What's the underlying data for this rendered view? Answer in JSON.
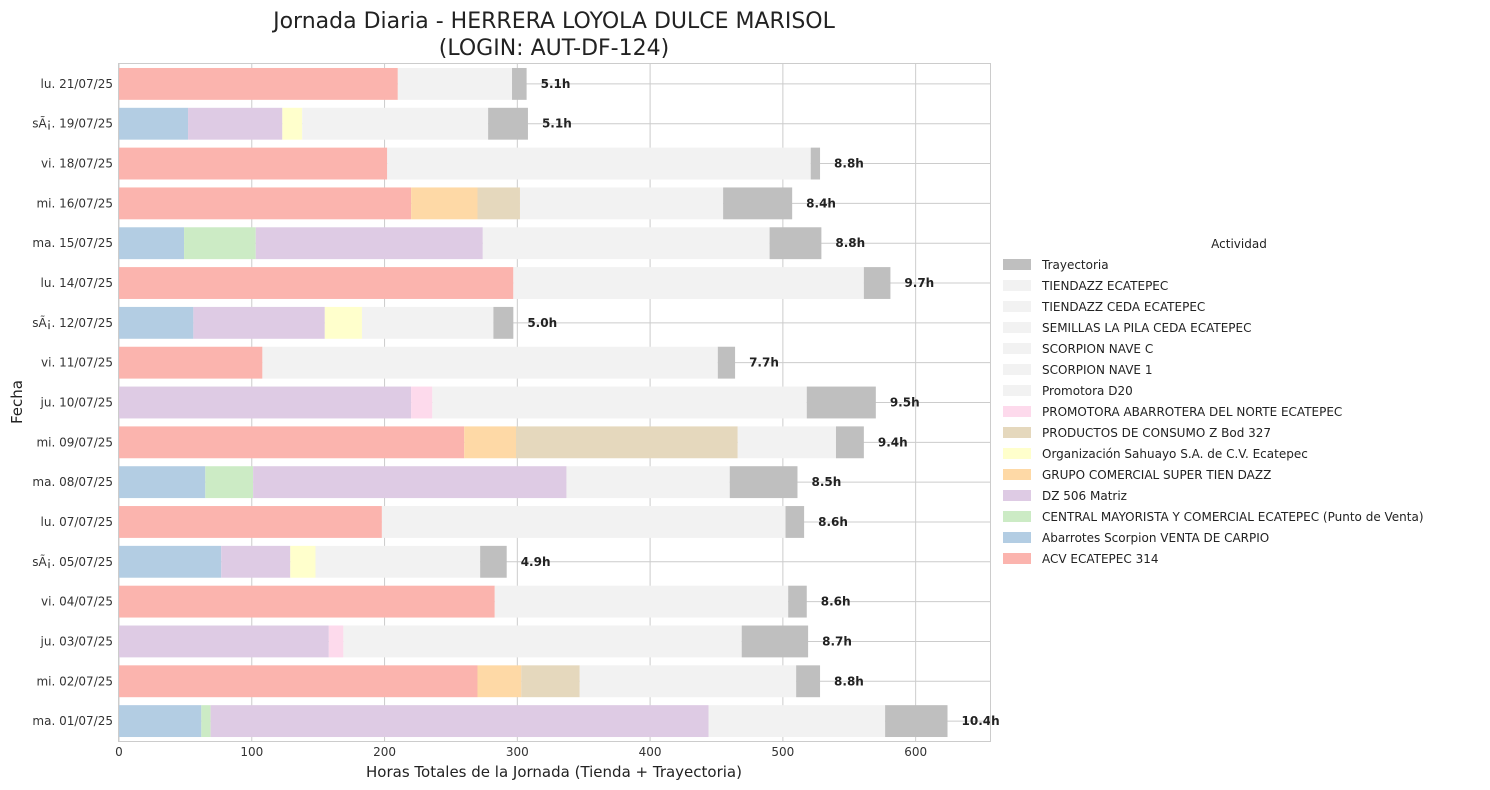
{
  "chart_data": {
    "type": "bar",
    "orientation": "horizontal",
    "stacked": true,
    "title": [
      "Jornada Diaria - HERRERA LOYOLA DULCE MARISOL",
      "(LOGIN: AUT-DF-124)"
    ],
    "xlabel": "Horas Totales de la Jornada (Tienda + Trayectoria)",
    "ylabel": "Fecha",
    "xlim": [
      0,
      656
    ],
    "xticks": [
      0,
      100,
      200,
      300,
      400,
      500,
      600
    ],
    "grid": true,
    "legend_title": "Actividad",
    "legend_position": "center-right",
    "activities": [
      {
        "name": "Trayectoria",
        "color": "#bfbfbf"
      },
      {
        "name": "TIENDAZZ ECATEPEC",
        "color": "#f2f2f2"
      },
      {
        "name": "TIENDAZZ CEDA ECATEPEC",
        "color": "#f2f2f2"
      },
      {
        "name": "SEMILLAS LA PILA CEDA ECATEPEC",
        "color": "#f2f2f2"
      },
      {
        "name": "SCORPION NAVE C",
        "color": "#f2f2f2"
      },
      {
        "name": "SCORPION NAVE 1",
        "color": "#f2f2f2"
      },
      {
        "name": "Promotora D20",
        "color": "#f2f2f2"
      },
      {
        "name": "PROMOTORA ABARROTERA DEL NORTE ECATEPEC",
        "color": "#fddaec"
      },
      {
        "name": "PRODUCTOS DE CONSUMO Z Bod 327",
        "color": "#e5d8bd"
      },
      {
        "name": "Organización Sahuayo S.A. de C.V. Ecatepec",
        "color": "#ffffcc"
      },
      {
        "name": "GRUPO COMERCIAL SUPER TIEN DAZZ",
        "color": "#fed9a6"
      },
      {
        "name": "DZ 506 Matriz",
        "color": "#decbe4"
      },
      {
        "name": "CENTRAL MAYORISTA Y COMERCIAL ECATEPEC (Punto de Venta)",
        "color": "#ccebc5"
      },
      {
        "name": "Abarrotes Scorpion VENTA DE CARPIO",
        "color": "#b3cde3"
      },
      {
        "name": "ACV ECATEPEC 314",
        "color": "#fbb4ae"
      }
    ],
    "rows": [
      {
        "date": "lu. 21/07/25",
        "total_label": "5.1h",
        "segments": [
          {
            "activity": "ACV ECATEPEC 314",
            "start": 0,
            "end": 210
          },
          {
            "activity": "TIENDAZZ ECATEPEC",
            "start": 210,
            "end": 296
          },
          {
            "activity": "Trayectoria",
            "start": 296,
            "end": 307
          }
        ]
      },
      {
        "date": "sÃ¡. 19/07/25",
        "total_label": "5.1h",
        "segments": [
          {
            "activity": "Abarrotes Scorpion VENTA DE CARPIO",
            "start": 0,
            "end": 52
          },
          {
            "activity": "DZ 506 Matriz",
            "start": 52,
            "end": 123
          },
          {
            "activity": "Organización Sahuayo S.A. de C.V. Ecatepec",
            "start": 123,
            "end": 138
          },
          {
            "activity": "SCORPION NAVE C",
            "start": 138,
            "end": 278
          },
          {
            "activity": "Trayectoria",
            "start": 278,
            "end": 308
          }
        ]
      },
      {
        "date": "vi. 18/07/25",
        "total_label": "8.8h",
        "segments": [
          {
            "activity": "ACV ECATEPEC 314",
            "start": 0,
            "end": 202
          },
          {
            "activity": "TIENDAZZ ECATEPEC",
            "start": 202,
            "end": 521
          },
          {
            "activity": "Trayectoria",
            "start": 521,
            "end": 528
          }
        ]
      },
      {
        "date": "mi. 16/07/25",
        "total_label": "8.4h",
        "segments": [
          {
            "activity": "ACV ECATEPEC 314",
            "start": 0,
            "end": 220
          },
          {
            "activity": "GRUPO COMERCIAL SUPER TIEN DAZZ",
            "start": 220,
            "end": 270
          },
          {
            "activity": "PRODUCTOS DE CONSUMO Z Bod 327",
            "start": 270,
            "end": 302
          },
          {
            "activity": "TIENDAZZ CEDA ECATEPEC",
            "start": 302,
            "end": 455
          },
          {
            "activity": "Trayectoria",
            "start": 455,
            "end": 507
          }
        ]
      },
      {
        "date": "ma. 15/07/25",
        "total_label": "8.8h",
        "segments": [
          {
            "activity": "Abarrotes Scorpion VENTA DE CARPIO",
            "start": 0,
            "end": 49
          },
          {
            "activity": "CENTRAL MAYORISTA Y COMERCIAL ECATEPEC (Punto de Venta)",
            "start": 49,
            "end": 103
          },
          {
            "activity": "DZ 506 Matriz",
            "start": 103,
            "end": 274
          },
          {
            "activity": "SCORPION NAVE 1",
            "start": 274,
            "end": 490
          },
          {
            "activity": "Trayectoria",
            "start": 490,
            "end": 529
          }
        ]
      },
      {
        "date": "lu. 14/07/25",
        "total_label": "9.7h",
        "segments": [
          {
            "activity": "ACV ECATEPEC 314",
            "start": 0,
            "end": 297
          },
          {
            "activity": "TIENDAZZ ECATEPEC",
            "start": 297,
            "end": 561
          },
          {
            "activity": "Trayectoria",
            "start": 561,
            "end": 581
          }
        ]
      },
      {
        "date": "sÃ¡. 12/07/25",
        "total_label": "5.0h",
        "segments": [
          {
            "activity": "Abarrotes Scorpion VENTA DE CARPIO",
            "start": 0,
            "end": 56
          },
          {
            "activity": "DZ 506 Matriz",
            "start": 56,
            "end": 155
          },
          {
            "activity": "Organización Sahuayo S.A. de C.V. Ecatepec",
            "start": 155,
            "end": 183
          },
          {
            "activity": "SCORPION NAVE C",
            "start": 183,
            "end": 282
          },
          {
            "activity": "Trayectoria",
            "start": 282,
            "end": 297
          }
        ]
      },
      {
        "date": "vi. 11/07/25",
        "total_label": "7.7h",
        "segments": [
          {
            "activity": "ACV ECATEPEC 314",
            "start": 0,
            "end": 108
          },
          {
            "activity": "TIENDAZZ ECATEPEC",
            "start": 108,
            "end": 451
          },
          {
            "activity": "Trayectoria",
            "start": 451,
            "end": 464
          }
        ]
      },
      {
        "date": "ju. 10/07/25",
        "total_label": "9.5h",
        "segments": [
          {
            "activity": "DZ 506 Matriz",
            "start": 0,
            "end": 220
          },
          {
            "activity": "PROMOTORA ABARROTERA DEL NORTE ECATEPEC",
            "start": 220,
            "end": 236
          },
          {
            "activity": "Promotora D20",
            "start": 236,
            "end": 518
          },
          {
            "activity": "Trayectoria",
            "start": 518,
            "end": 570
          }
        ]
      },
      {
        "date": "mi. 09/07/25",
        "total_label": "9.4h",
        "segments": [
          {
            "activity": "ACV ECATEPEC 314",
            "start": 0,
            "end": 260
          },
          {
            "activity": "GRUPO COMERCIAL SUPER TIEN DAZZ",
            "start": 260,
            "end": 299
          },
          {
            "activity": "PRODUCTOS DE CONSUMO Z Bod 327",
            "start": 299,
            "end": 466
          },
          {
            "activity": "TIENDAZZ CEDA ECATEPEC",
            "start": 466,
            "end": 540
          },
          {
            "activity": "Trayectoria",
            "start": 540,
            "end": 561
          }
        ]
      },
      {
        "date": "ma. 08/07/25",
        "total_label": "8.5h",
        "segments": [
          {
            "activity": "Abarrotes Scorpion VENTA DE CARPIO",
            "start": 0,
            "end": 65
          },
          {
            "activity": "CENTRAL MAYORISTA Y COMERCIAL ECATEPEC (Punto de Venta)",
            "start": 65,
            "end": 101
          },
          {
            "activity": "DZ 506 Matriz",
            "start": 101,
            "end": 337
          },
          {
            "activity": "SCORPION NAVE 1",
            "start": 337,
            "end": 460
          },
          {
            "activity": "Trayectoria",
            "start": 460,
            "end": 511
          }
        ]
      },
      {
        "date": "lu. 07/07/25",
        "total_label": "8.6h",
        "segments": [
          {
            "activity": "ACV ECATEPEC 314",
            "start": 0,
            "end": 198
          },
          {
            "activity": "TIENDAZZ ECATEPEC",
            "start": 198,
            "end": 502
          },
          {
            "activity": "Trayectoria",
            "start": 502,
            "end": 516
          }
        ]
      },
      {
        "date": "sÃ¡. 05/07/25",
        "total_label": "4.9h",
        "segments": [
          {
            "activity": "Abarrotes Scorpion VENTA DE CARPIO",
            "start": 0,
            "end": 77
          },
          {
            "activity": "DZ 506 Matriz",
            "start": 77,
            "end": 129
          },
          {
            "activity": "Organización Sahuayo S.A. de C.V. Ecatepec",
            "start": 129,
            "end": 148
          },
          {
            "activity": "SCORPION NAVE C",
            "start": 148,
            "end": 272
          },
          {
            "activity": "Trayectoria",
            "start": 272,
            "end": 292
          }
        ]
      },
      {
        "date": "vi. 04/07/25",
        "total_label": "8.6h",
        "segments": [
          {
            "activity": "ACV ECATEPEC 314",
            "start": 0,
            "end": 283
          },
          {
            "activity": "TIENDAZZ ECATEPEC",
            "start": 283,
            "end": 504
          },
          {
            "activity": "Trayectoria",
            "start": 504,
            "end": 518
          }
        ]
      },
      {
        "date": "ju. 03/07/25",
        "total_label": "8.7h",
        "segments": [
          {
            "activity": "DZ 506 Matriz",
            "start": 0,
            "end": 158
          },
          {
            "activity": "PROMOTORA ABARROTERA DEL NORTE ECATEPEC",
            "start": 158,
            "end": 169
          },
          {
            "activity": "Promotora D20",
            "start": 169,
            "end": 469
          },
          {
            "activity": "Trayectoria",
            "start": 469,
            "end": 519
          }
        ]
      },
      {
        "date": "mi. 02/07/25",
        "total_label": "8.8h",
        "segments": [
          {
            "activity": "ACV ECATEPEC 314",
            "start": 0,
            "end": 270
          },
          {
            "activity": "GRUPO COMERCIAL SUPER TIEN DAZZ",
            "start": 270,
            "end": 303
          },
          {
            "activity": "PRODUCTOS DE CONSUMO Z Bod 327",
            "start": 303,
            "end": 347
          },
          {
            "activity": "TIENDAZZ CEDA ECATEPEC",
            "start": 347,
            "end": 510
          },
          {
            "activity": "Trayectoria",
            "start": 510,
            "end": 528
          }
        ]
      },
      {
        "date": "ma. 01/07/25",
        "total_label": "10.4h",
        "segments": [
          {
            "activity": "Abarrotes Scorpion VENTA DE CARPIO",
            "start": 0,
            "end": 62
          },
          {
            "activity": "CENTRAL MAYORISTA Y COMERCIAL ECATEPEC (Punto de Venta)",
            "start": 62,
            "end": 69
          },
          {
            "activity": "DZ 506 Matriz",
            "start": 69,
            "end": 444
          },
          {
            "activity": "SEMILLAS LA PILA CEDA ECATEPEC",
            "start": 444,
            "end": 577
          },
          {
            "activity": "Trayectoria",
            "start": 577,
            "end": 624
          }
        ]
      }
    ]
  }
}
